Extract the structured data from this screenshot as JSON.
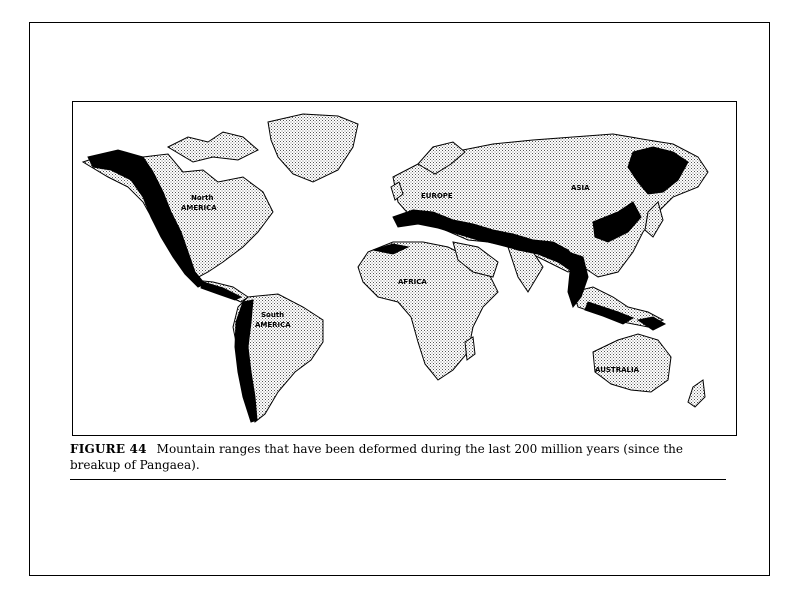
{
  "figure": {
    "label": "FIGURE 44",
    "caption": "Mountain ranges that have been deformed during the last 200 million years (since the breakup of Pangaea)."
  },
  "map": {
    "labels": {
      "north_america": {
        "line1": "North",
        "line2": "AMERICA"
      },
      "south_america": {
        "line1": "South",
        "line2": "AMERICA"
      },
      "europe": "EUROPE",
      "asia": "ASIA",
      "africa": "AFRICA",
      "australia": "AUSTRALIA"
    },
    "colors": {
      "land_stipple": "#8a8a8a",
      "mountain_ranges": "#000000",
      "background": "#ffffff"
    }
  }
}
